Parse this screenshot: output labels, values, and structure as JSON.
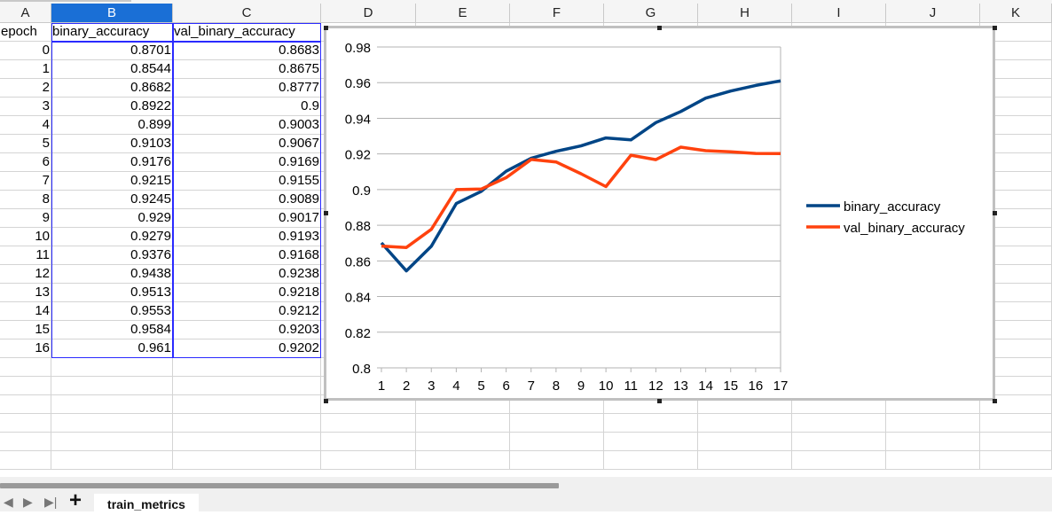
{
  "columns": [
    "A",
    "B",
    "C",
    "D",
    "E",
    "F",
    "G",
    "H",
    "I",
    "J",
    "K"
  ],
  "headers": {
    "a": "epoch",
    "b": "binary_accuracy",
    "c": "val_binary_accuracy"
  },
  "rows": [
    [
      "0",
      "0.8701",
      "0.8683"
    ],
    [
      "1",
      "0.8544",
      "0.8675"
    ],
    [
      "2",
      "0.8682",
      "0.8777"
    ],
    [
      "3",
      "0.8922",
      "0.9"
    ],
    [
      "4",
      "0.899",
      "0.9003"
    ],
    [
      "5",
      "0.9103",
      "0.9067"
    ],
    [
      "6",
      "0.9176",
      "0.9169"
    ],
    [
      "7",
      "0.9215",
      "0.9155"
    ],
    [
      "8",
      "0.9245",
      "0.9089"
    ],
    [
      "9",
      "0.929",
      "0.9017"
    ],
    [
      "10",
      "0.9279",
      "0.9193"
    ],
    [
      "11",
      "0.9376",
      "0.9168"
    ],
    [
      "12",
      "0.9438",
      "0.9238"
    ],
    [
      "13",
      "0.9513",
      "0.9218"
    ],
    [
      "14",
      "0.9553",
      "0.9212"
    ],
    [
      "15",
      "0.9584",
      "0.9203"
    ],
    [
      "16",
      "0.961",
      "0.9202"
    ]
  ],
  "sheet_tab": "train_metrics",
  "chart_data": {
    "type": "line",
    "x": [
      1,
      2,
      3,
      4,
      5,
      6,
      7,
      8,
      9,
      10,
      11,
      12,
      13,
      14,
      15,
      16,
      17
    ],
    "series": [
      {
        "name": "binary_accuracy",
        "color": "#004586",
        "values": [
          0.8701,
          0.8544,
          0.8682,
          0.8922,
          0.899,
          0.9103,
          0.9176,
          0.9215,
          0.9245,
          0.929,
          0.9279,
          0.9376,
          0.9438,
          0.9513,
          0.9553,
          0.9584,
          0.961
        ]
      },
      {
        "name": "val_binary_accuracy",
        "color": "#ff420e",
        "values": [
          0.8683,
          0.8675,
          0.8777,
          0.9,
          0.9003,
          0.9067,
          0.9169,
          0.9155,
          0.9089,
          0.9017,
          0.9193,
          0.9168,
          0.9238,
          0.9218,
          0.9212,
          0.9203,
          0.9202
        ]
      }
    ],
    "y_ticks": [
      "0.8",
      "0.82",
      "0.84",
      "0.86",
      "0.88",
      "0.9",
      "0.92",
      "0.94",
      "0.96",
      "0.98"
    ],
    "x_ticks": [
      "1",
      "2",
      "3",
      "4",
      "5",
      "6",
      "7",
      "8",
      "9",
      "10",
      "11",
      "12",
      "13",
      "14",
      "15",
      "16",
      "17"
    ],
    "ylim": [
      0.8,
      0.98
    ],
    "xlim": [
      1,
      17
    ],
    "grid": "horizontal",
    "legend_position": "right"
  }
}
